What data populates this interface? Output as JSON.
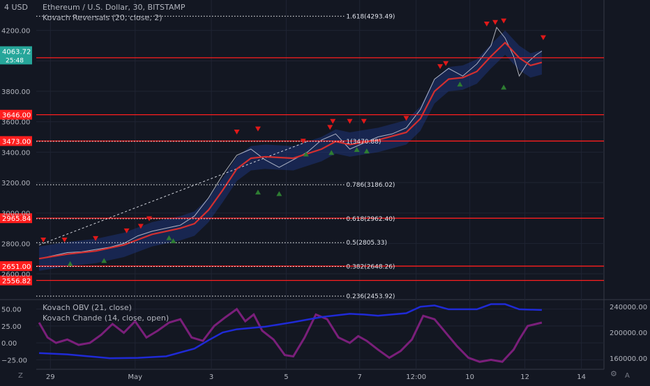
{
  "header": {
    "currency_badge": "USD",
    "currency_chevron": "4",
    "title": "Ethereum / U.S. Dollar, 30, BITSTAMP",
    "indicator": "Kovach Reversals (20, close, 2)"
  },
  "lower_pane": {
    "line1": "Kovach OBV (21, close)",
    "line2": "Kovach Chande (14, close, open)"
  },
  "bottom_bar": {
    "left_icon_label": "Z",
    "right_icon_label": "A"
  },
  "colors": {
    "background": "#131722",
    "grid": "#1f2433",
    "hline": "#ff1e1e",
    "fib": "#ffffff",
    "price_line": "#e0e3eb",
    "ma": "#d32f2f",
    "band": "#1e3a8a",
    "down_marker": "#e01919",
    "up_marker": "#2e7d32",
    "obv": "#1f2ad6",
    "chande": "#7a1f7a"
  },
  "chart_data": {
    "type": "line",
    "title": "Ethereum / U.S. Dollar, 30, BITSTAMP",
    "ylim": [
      2440,
      4400
    ],
    "y_ticks": [
      {
        "label": "4200.00",
        "value": 4200
      },
      {
        "label": "4000.00",
        "value": 4000
      },
      {
        "label": "3800.00",
        "value": 3800
      },
      {
        "label": "3600.00",
        "value": 3600
      },
      {
        "label": "3400.00",
        "value": 3400
      },
      {
        "label": "3200.00",
        "value": 3200
      },
      {
        "label": "3000.00",
        "value": 3000
      },
      {
        "label": "2800.00",
        "value": 2800
      },
      {
        "label": "2600.00",
        "value": 2600
      }
    ],
    "x_ticks": [
      "29",
      "May",
      "3",
      "5",
      "7",
      "12:00",
      "10",
      "12",
      "14"
    ],
    "x_tick_pos": [
      0.4,
      3.4,
      6.1,
      8.75,
      11.35,
      13.35,
      15.25,
      17.2,
      19.2
    ],
    "x_range": [
      -0.1,
      20.0
    ],
    "price_series": [
      [
        0,
        2700
      ],
      [
        0.5,
        2720
      ],
      [
        1,
        2740
      ],
      [
        1.5,
        2745
      ],
      [
        2,
        2760
      ],
      [
        2.5,
        2775
      ],
      [
        3,
        2800
      ],
      [
        3.5,
        2850
      ],
      [
        4,
        2880
      ],
      [
        4.5,
        2900
      ],
      [
        5,
        2920
      ],
      [
        5.5,
        2980
      ],
      [
        6,
        3100
      ],
      [
        6.5,
        3250
      ],
      [
        7,
        3380
      ],
      [
        7.5,
        3420
      ],
      [
        8,
        3350
      ],
      [
        8.5,
        3300
      ],
      [
        9,
        3350
      ],
      [
        9.5,
        3400
      ],
      [
        10,
        3480
      ],
      [
        10.5,
        3520
      ],
      [
        11,
        3420
      ],
      [
        11.5,
        3460
      ],
      [
        12,
        3500
      ],
      [
        12.5,
        3520
      ],
      [
        13,
        3560
      ],
      [
        13.5,
        3680
      ],
      [
        14,
        3880
      ],
      [
        14.5,
        3950
      ],
      [
        15,
        3900
      ],
      [
        15.5,
        3980
      ],
      [
        16,
        4100
      ],
      [
        16.2,
        4220
      ],
      [
        16.5,
        4150
      ],
      [
        16.8,
        4030
      ],
      [
        17,
        3900
      ],
      [
        17.3,
        3990
      ],
      [
        17.6,
        4040
      ],
      [
        17.8,
        4064
      ]
    ],
    "ma_series": [
      [
        0,
        2700
      ],
      [
        1,
        2730
      ],
      [
        2,
        2750
      ],
      [
        3,
        2790
      ],
      [
        4,
        2860
      ],
      [
        5,
        2900
      ],
      [
        5.5,
        2930
      ],
      [
        6,
        3020
      ],
      [
        6.5,
        3150
      ],
      [
        7,
        3290
      ],
      [
        7.5,
        3360
      ],
      [
        8,
        3370
      ],
      [
        9,
        3360
      ],
      [
        10,
        3420
      ],
      [
        10.5,
        3470
      ],
      [
        11,
        3450
      ],
      [
        12,
        3480
      ],
      [
        13,
        3530
      ],
      [
        13.5,
        3620
      ],
      [
        14,
        3800
      ],
      [
        14.5,
        3880
      ],
      [
        15,
        3890
      ],
      [
        15.5,
        3930
      ],
      [
        16,
        4030
      ],
      [
        16.5,
        4120
      ],
      [
        17,
        4020
      ],
      [
        17.4,
        3970
      ],
      [
        17.8,
        3990
      ]
    ],
    "band_width": 80,
    "markers_down": [
      [
        0.15,
        2820
      ],
      [
        0.9,
        2820
      ],
      [
        2.0,
        2830
      ],
      [
        3.1,
        2880
      ],
      [
        3.6,
        2910
      ],
      [
        3.9,
        2960
      ],
      [
        7.0,
        3530
      ],
      [
        7.75,
        3550
      ],
      [
        9.35,
        3470
      ],
      [
        10.3,
        3560
      ],
      [
        10.4,
        3600
      ],
      [
        11.0,
        3600
      ],
      [
        11.5,
        3600
      ],
      [
        13.0,
        3620
      ],
      [
        14.2,
        3960
      ],
      [
        14.4,
        3980
      ],
      [
        15.85,
        4240
      ],
      [
        16.15,
        4250
      ],
      [
        16.45,
        4260
      ],
      [
        17.85,
        4150
      ]
    ],
    "markers_up": [
      [
        1.1,
        2670
      ],
      [
        2.3,
        2690
      ],
      [
        4.6,
        2840
      ],
      [
        4.75,
        2820
      ],
      [
        7.75,
        3140
      ],
      [
        8.5,
        3130
      ],
      [
        9.45,
        3390
      ],
      [
        10.35,
        3400
      ],
      [
        11.25,
        3420
      ],
      [
        11.6,
        3410
      ],
      [
        14.9,
        3850
      ],
      [
        16.45,
        3830
      ]
    ],
    "hlines": [
      {
        "label": "4020.40",
        "value": 4020.4
      },
      {
        "label": "3646.00",
        "value": 3646
      },
      {
        "label": "3473.00",
        "value": 3473
      },
      {
        "label": "2965.84",
        "value": 2965.84
      },
      {
        "label": "2651.00",
        "value": 2651
      },
      {
        "label": "2556.82",
        "value": 2556.82
      }
    ],
    "fib_levels": [
      {
        "label": "1.618(4293.49)",
        "value": 4293.49
      },
      {
        "label": "1(3470.88)",
        "value": 3470.88
      },
      {
        "label": "0.786(3186.02)",
        "value": 3186.02
      },
      {
        "label": "0.618(2962.40)",
        "value": 2962.4
      },
      {
        "label": "0.5(2805.33)",
        "value": 2805.33
      },
      {
        "label": "0.382(2648.26)",
        "value": 2648.26
      },
      {
        "label": "0.236(2453.92)",
        "value": 2453.92
      }
    ],
    "last_price": {
      "label": "4063.72",
      "countdown": "25:48",
      "value": 4063.72
    },
    "lower": {
      "left_ticks": [
        {
          "label": "50.00",
          "value": 50
        },
        {
          "label": "25.00",
          "value": 25
        },
        {
          "label": "0.00",
          "value": 0
        },
        {
          "label": "−25.00",
          "value": -25
        }
      ],
      "left_range": [
        -37,
        63
      ],
      "right_ticks": [
        {
          "label": "240000.00",
          "value": 240000
        },
        {
          "label": "200000.00",
          "value": 200000
        },
        {
          "label": "160000.00",
          "value": 160000
        }
      ],
      "right_range": [
        145000,
        250000
      ],
      "obv_series": [
        [
          0,
          168000
        ],
        [
          1,
          166000
        ],
        [
          2,
          162000
        ],
        [
          2.5,
          160000
        ],
        [
          3.5,
          160500
        ],
        [
          4.5,
          163000
        ],
        [
          5.5,
          175000
        ],
        [
          6,
          188000
        ],
        [
          6.5,
          200000
        ],
        [
          7,
          205000
        ],
        [
          8,
          209000
        ],
        [
          9,
          216000
        ],
        [
          10,
          224000
        ],
        [
          11,
          229000
        ],
        [
          11.5,
          228000
        ],
        [
          12,
          226000
        ],
        [
          13,
          230000
        ],
        [
          13.5,
          240000
        ],
        [
          14,
          242000
        ],
        [
          14.5,
          236000
        ],
        [
          15.5,
          236000
        ],
        [
          16,
          244000
        ],
        [
          16.5,
          244000
        ],
        [
          17,
          236000
        ],
        [
          17.8,
          235000
        ]
      ],
      "chande_series": [
        [
          0,
          30
        ],
        [
          0.3,
          8
        ],
        [
          0.6,
          0
        ],
        [
          1.0,
          5
        ],
        [
          1.4,
          -3
        ],
        [
          1.8,
          0
        ],
        [
          2.2,
          12
        ],
        [
          2.6,
          28
        ],
        [
          3.0,
          15
        ],
        [
          3.4,
          32
        ],
        [
          3.8,
          8
        ],
        [
          4.2,
          18
        ],
        [
          4.6,
          30
        ],
        [
          5.0,
          35
        ],
        [
          5.4,
          8
        ],
        [
          5.8,
          3
        ],
        [
          6.2,
          25
        ],
        [
          6.6,
          38
        ],
        [
          7.0,
          50
        ],
        [
          7.3,
          32
        ],
        [
          7.6,
          42
        ],
        [
          7.9,
          18
        ],
        [
          8.3,
          5
        ],
        [
          8.7,
          -18
        ],
        [
          9.0,
          -20
        ],
        [
          9.4,
          8
        ],
        [
          9.8,
          42
        ],
        [
          10.2,
          35
        ],
        [
          10.6,
          8
        ],
        [
          11.0,
          0
        ],
        [
          11.3,
          10
        ],
        [
          11.6,
          3
        ],
        [
          12.0,
          -10
        ],
        [
          12.4,
          -22
        ],
        [
          12.8,
          -12
        ],
        [
          13.2,
          5
        ],
        [
          13.6,
          40
        ],
        [
          14.0,
          35
        ],
        [
          14.4,
          15
        ],
        [
          14.8,
          -5
        ],
        [
          15.2,
          -22
        ],
        [
          15.6,
          -28
        ],
        [
          16.0,
          -25
        ],
        [
          16.4,
          -28
        ],
        [
          16.8,
          -10
        ],
        [
          17.0,
          5
        ],
        [
          17.3,
          25
        ],
        [
          17.8,
          30
        ]
      ]
    }
  }
}
